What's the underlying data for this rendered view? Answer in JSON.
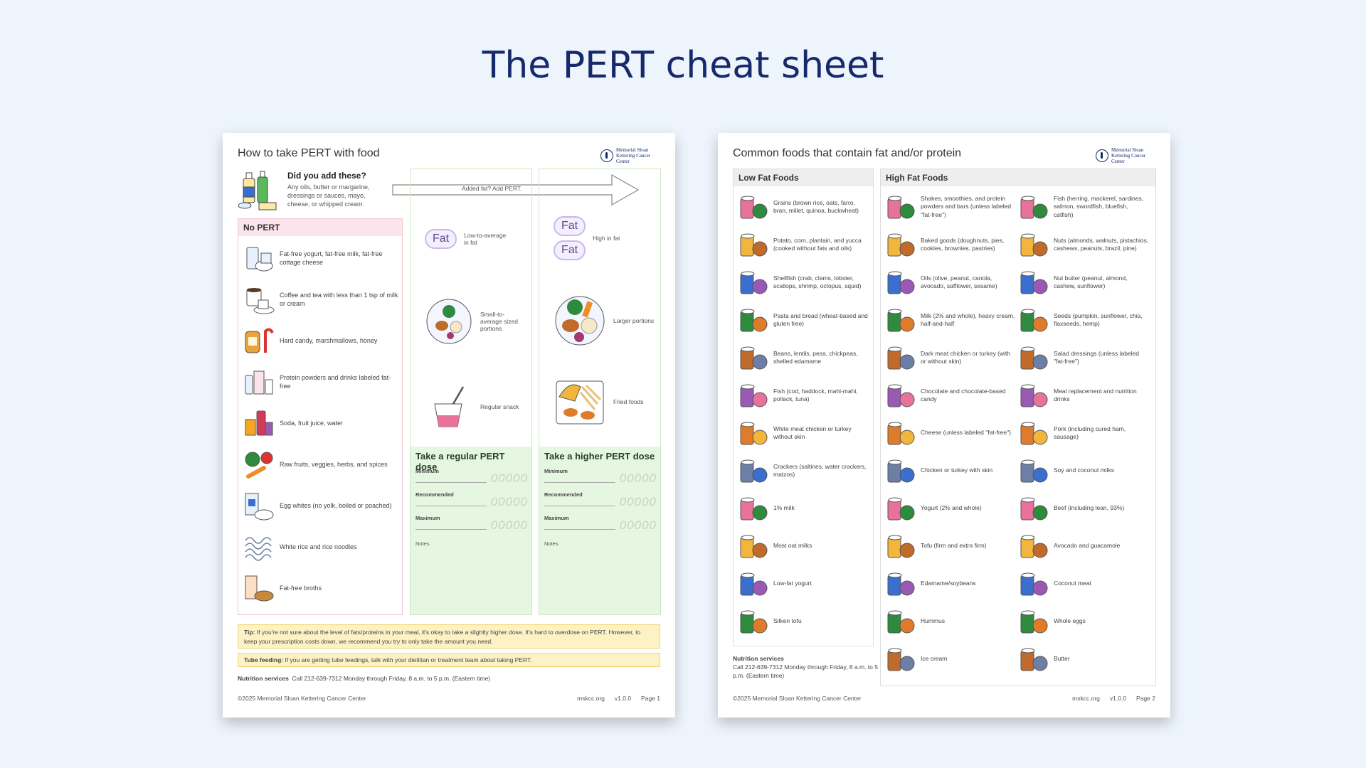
{
  "title": "The PERT cheat sheet",
  "logo_text": "Memorial Sloan Kettering Cancer Center",
  "page1": {
    "heading": "How to take PERT with food",
    "add": {
      "heading": "Did you add these?",
      "text": "Any oils, butter or margarine, dressings or sauces, mayo, cheese, or whipped cream."
    },
    "arrow_label": "Added fat? Add PERT.",
    "no_pert": {
      "heading": "No PERT",
      "items": [
        {
          "icon": "yogurt-milk-icon",
          "text": "Fat-free yogurt, fat-free milk, fat-free cottage cheese"
        },
        {
          "icon": "coffee-cup-icon",
          "text": "Coffee and tea with less than 1 tsp of milk or cream"
        },
        {
          "icon": "candy-honey-icon",
          "text": "Hard candy, marshmallows, honey"
        },
        {
          "icon": "protein-drink-icon",
          "text": "Protein powders and drinks labeled fat-free"
        },
        {
          "icon": "soda-juice-icon",
          "text": "Soda, fruit juice, water"
        },
        {
          "icon": "produce-icon",
          "text": "Raw fruits, veggies, herbs, and spices"
        },
        {
          "icon": "egg-whites-icon",
          "text": "Egg whites (no yolk, boiled or poached)"
        },
        {
          "icon": "noodles-icon",
          "text": "White rice and rice noodles"
        },
        {
          "icon": "broth-icon",
          "text": "Fat-free broths"
        }
      ]
    },
    "regular": {
      "fat_label": "Fat",
      "fat_text": "Low-to-average in fat",
      "portion_text": "Small-to-average sized portions",
      "snack_text": "Regular snack",
      "dose_heading": "Take a regular PERT dose"
    },
    "higher": {
      "fat_label_1": "Fat",
      "fat_label_2": "Fat",
      "fat_text": "High in fat",
      "portion_text": "Larger portions",
      "snack_text": "Fried foods",
      "dose_heading": "Take a higher PERT dose"
    },
    "dose_labels": {
      "minimum": "Minimum",
      "recommended": "Recommended",
      "maximum": "Maximum",
      "notes": "Notes",
      "placeholder": "00000"
    },
    "tip_label": "Tip:",
    "tip_text": "If you're not sure about the level of fats/proteins in your meal, it's okay to take a slightly higher dose. It's hard to overdose on PERT. However, to keep your prescription costs down, we recommend you try to only take the amount you need.",
    "tube_label": "Tube feeding:",
    "tube_text": "If you are getting tube feedings, talk with your dietitian or treatment team about taking PERT.",
    "nutrition_label": "Nutrition services",
    "nutrition_text": "Call 212-639-7312 Monday through Friday, 8 a.m. to 5 p.m. (Eastern time)",
    "copyright": "©2025 Memorial Sloan Kettering Cancer Center",
    "site": "mskcc.org",
    "version": "v1.0.0",
    "page": "Page 1"
  },
  "page2": {
    "heading": "Common foods that contain fat and/or protein",
    "low_heading": "Low Fat Foods",
    "high_heading": "High Fat Foods",
    "low_items": [
      {
        "icon": "grains-icon",
        "text": "Grains (brown rice, oats, farro, bran, millet, quinoa, buckwheat)"
      },
      {
        "icon": "potato-icon",
        "text": "Potato, corn, plantain, and yucca (cooked without fats and oils)"
      },
      {
        "icon": "shellfish-icon",
        "text": "Shellfish (crab, clams, lobster, scallops, shrimp, octopus, squid)"
      },
      {
        "icon": "pasta-bread-icon",
        "text": "Pasta and bread (wheat-based and gluten free)"
      },
      {
        "icon": "beans-icon",
        "text": "Beans, lentils, peas, chickpeas, shelled edamame"
      },
      {
        "icon": "fish-can-icon",
        "text": "Fish (cod, haddock,  mahi-mahi, pollack, tuna)"
      },
      {
        "icon": "chicken-breast-icon",
        "text": "White meat chicken or turkey without skin"
      },
      {
        "icon": "crackers-icon",
        "text": "Crackers (saltines, water crackers, matzos)"
      },
      {
        "icon": "milk-carton-icon",
        "text": "1% milk"
      },
      {
        "icon": "oat-milk-icon",
        "text": "Most oat milks"
      },
      {
        "icon": "yogurt-icon",
        "text": "Low-fat yogurt"
      },
      {
        "icon": "tofu-icon",
        "text": "Silken tofu"
      }
    ],
    "high_col1": [
      {
        "icon": "shake-icon",
        "text": "Shakes, smoothies, and protein powders and bars (unless labeled \"fat-free\")"
      },
      {
        "icon": "baked-goods-icon",
        "text": "Baked goods (doughnuts, pies, cookies, brownies, pastries)"
      },
      {
        "icon": "oil-bottle-icon",
        "text": "Oils (olive, peanut, canola, avocado, safflower, sesame)"
      },
      {
        "icon": "milk-cream-icon",
        "text": "Milk (2% and whole), heavy cream, half-and-half"
      },
      {
        "icon": "drumstick-icon",
        "text": "Dark meat chicken or turkey (with or without skin)"
      },
      {
        "icon": "chocolate-icon",
        "text": "Chocolate and chocolate-based candy"
      },
      {
        "icon": "cheese-icon",
        "text": "Cheese (unless labeled \"fat-free\")"
      },
      {
        "icon": "chicken-skin-icon",
        "text": "Chicken or turkey with skin"
      },
      {
        "icon": "yogurt-whole-icon",
        "text": "Yogurt (2% and whole)"
      },
      {
        "icon": "firm-tofu-icon",
        "text": "Tofu (firm and extra firm)"
      },
      {
        "icon": "edamame-icon",
        "text": "Edamame/soybeans"
      },
      {
        "icon": "hummus-icon",
        "text": "Hummus"
      },
      {
        "icon": "ice-cream-icon",
        "text": "Ice cream"
      }
    ],
    "high_col2": [
      {
        "icon": "fatty-fish-icon",
        "text": "Fish (herring, mackerel, sardines, salmon, swordfish, bluefish, catfish)"
      },
      {
        "icon": "nuts-icon",
        "text": "Nuts (almonds, walnuts, pistachios, cashews, peanuts, brazil, pine)"
      },
      {
        "icon": "nut-butter-icon",
        "text": "Nut butter (peanut, almond, cashew, sunflower)"
      },
      {
        "icon": "seeds-icon",
        "text": "Seeds (pumpkin, sunflower, chia, flaxseeds, hemp)"
      },
      {
        "icon": "dressing-icon",
        "text": "Salad dressings (unless labeled \"fat-free\")"
      },
      {
        "icon": "meal-drink-icon",
        "text": "Meal replacement and nutrition drinks"
      },
      {
        "icon": "pork-icon",
        "text": "Pork (including cured ham, sausage)"
      },
      {
        "icon": "soy-milk-icon",
        "text": "Soy and coconut milks"
      },
      {
        "icon": "beef-icon",
        "text": "Beef (including lean, 93%)"
      },
      {
        "icon": "avocado-icon",
        "text": "Avocado and guacamole"
      },
      {
        "icon": "coconut-icon",
        "text": "Coconut meat"
      },
      {
        "icon": "whole-eggs-icon",
        "text": "Whole eggs"
      },
      {
        "icon": "butter-icon",
        "text": "Butter"
      }
    ],
    "nutrition_label": "Nutrition services",
    "nutrition_text": "Call 212-639-7312 Monday through Friday, 8 a.m. to 5 p.m. (Eastern time)",
    "copyright": "©2025 Memorial Sloan Kettering Cancer Center",
    "site": "mskcc.org",
    "version": "v1.0.0",
    "page": "Page 2"
  },
  "colors": {
    "title": "#16296b",
    "no_pert_border": "#f0c4d4",
    "dose_bg": "#e6f7e1",
    "tip_bg": "#fdf2c4"
  }
}
